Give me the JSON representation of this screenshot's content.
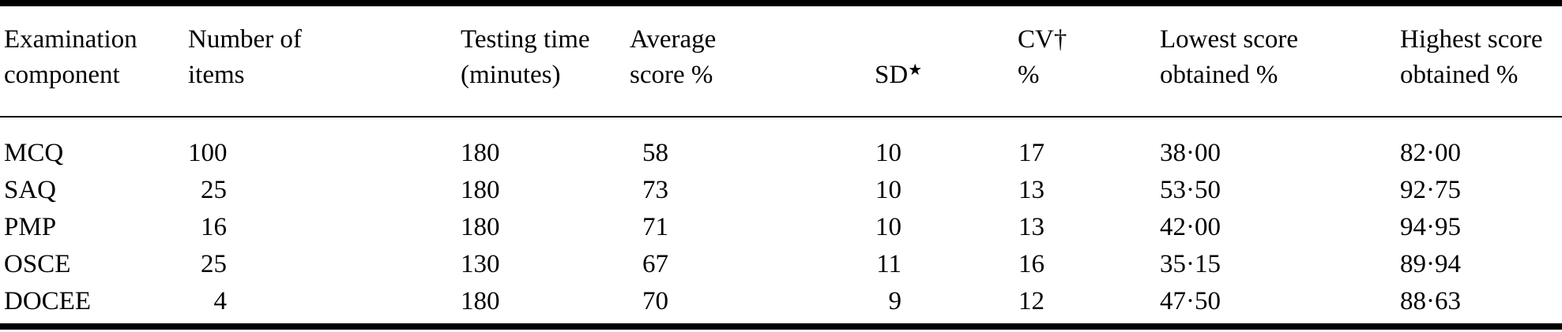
{
  "table": {
    "background": "#ffffff",
    "text_color": "#000000",
    "columns": [
      {
        "id": "component",
        "line1": "Examination",
        "line2": "component"
      },
      {
        "id": "items",
        "line1": "Number of",
        "line2": "items"
      },
      {
        "id": "time",
        "line1": "Testing time",
        "line2": "(minutes)"
      },
      {
        "id": "avg",
        "line1": "Average",
        "line2": "score %"
      },
      {
        "id": "sd",
        "line1": "",
        "line2": "SD",
        "marker": "★"
      },
      {
        "id": "cv",
        "line1": "CV†",
        "line2": "%"
      },
      {
        "id": "lowest",
        "line1": "Lowest score",
        "line2": "obtained %"
      },
      {
        "id": "highest",
        "line1": "Highest score",
        "line2": "obtained %"
      }
    ],
    "rows": [
      {
        "component": "MCQ",
        "items": "100",
        "time": "180",
        "avg": "58",
        "sd": "10",
        "cv": "17",
        "lowest": "38·00",
        "highest": "82·00"
      },
      {
        "component": "SAQ",
        "items": "25",
        "time": "180",
        "avg": "73",
        "sd": "10",
        "cv": "13",
        "lowest": "53·50",
        "highest": "92·75"
      },
      {
        "component": "PMP",
        "items": "16",
        "time": "180",
        "avg": "71",
        "sd": "10",
        "cv": "13",
        "lowest": "42·00",
        "highest": "94·95"
      },
      {
        "component": "OSCE",
        "items": "25",
        "time": "130",
        "avg": "67",
        "sd": "11",
        "cv": "16",
        "lowest": "35·15",
        "highest": "89·94"
      },
      {
        "component": "DOCEE",
        "items": "4",
        "time": "180",
        "avg": "70",
        "sd": "9",
        "cv": "12",
        "lowest": "47·50",
        "highest": "88·63"
      }
    ]
  }
}
